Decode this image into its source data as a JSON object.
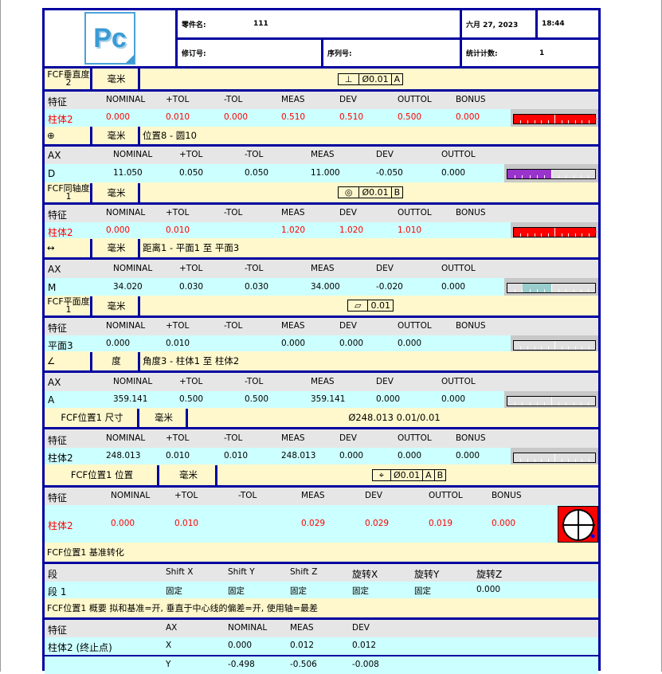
{
  "header": {
    "logo_text": "Pc",
    "part_name_label": "零件名:",
    "part_name": "111",
    "date": "六月 27, 2023",
    "time": "18:44",
    "revision_label": "修订号:",
    "revision": "",
    "serial_label": "序列号:",
    "serial": "",
    "count_label": "统计计数:",
    "count": "1"
  },
  "colors": {
    "border": "#0000a0",
    "header_bg": "#fff8cc",
    "colhead_bg": "#e6e6e6",
    "row_bg": "#ccffff",
    "out_of_tol": "#ff0000"
  },
  "sections": [
    {
      "kind": "fcf",
      "header": {
        "name": "FCF垂直度2",
        "unit": "毫米",
        "fcf": [
          "⊥",
          "Ø0.01",
          "A"
        ]
      },
      "columns": [
        "特征",
        "NOMINAL",
        "+TOL",
        "-TOL",
        "MEAS",
        "DEV",
        "OUTTOL",
        "BONUS"
      ],
      "rows": [
        {
          "out": true,
          "cells": [
            "柱体2",
            "0.000",
            "0.010",
            "0.000",
            "0.510",
            "0.510",
            "0.500",
            "0.000"
          ]
        }
      ],
      "gauge": {
        "fill_from": 0,
        "fill_to": 1,
        "color": "#ff0000",
        "arrow": true
      }
    },
    {
      "kind": "dim",
      "header": {
        "icon": "⊕",
        "unit": "毫米",
        "title": "位置8 - 圆10"
      },
      "columns": [
        "AX",
        "NOMINAL",
        "+TOL",
        "-TOL",
        "MEAS",
        "DEV",
        "OUTTOL"
      ],
      "rows": [
        {
          "out": false,
          "cells": [
            "D",
            "11.050",
            "0.050",
            "0.050",
            "11.000",
            "-0.050",
            "0.000"
          ]
        }
      ],
      "gauge": {
        "fill_from": 0,
        "fill_to": 0.5,
        "color": "#9933cc"
      }
    },
    {
      "kind": "fcf",
      "header": {
        "name": "FCF同轴度1",
        "unit": "毫米",
        "fcf": [
          "◎",
          "Ø0.01",
          "B"
        ]
      },
      "columns": [
        "特征",
        "NOMINAL",
        "+TOL",
        "-TOL",
        "MEAS",
        "DEV",
        "OUTTOL",
        "BONUS"
      ],
      "rows": [
        {
          "out": true,
          "cells": [
            "柱体2",
            "0.000",
            "0.010",
            "",
            "1.020",
            "1.020",
            "1.010",
            ""
          ]
        }
      ],
      "gauge": {
        "fill_from": 0,
        "fill_to": 1,
        "color": "#ff0000",
        "arrow": true
      }
    },
    {
      "kind": "dim",
      "header": {
        "icon": "↔",
        "unit": "毫米",
        "title": "距离1 - 平面1 至 平面3"
      },
      "columns": [
        "AX",
        "NOMINAL",
        "+TOL",
        "-TOL",
        "MEAS",
        "DEV",
        "OUTTOL"
      ],
      "rows": [
        {
          "out": false,
          "cells": [
            "M",
            "34.020",
            "0.030",
            "0.030",
            "34.000",
            "-0.020",
            "0.000"
          ]
        }
      ],
      "gauge": {
        "fill_from": 0.17,
        "fill_to": 0.5,
        "color": "#99cccc"
      }
    },
    {
      "kind": "fcf",
      "header": {
        "name": "FCF平面度1",
        "unit": "毫米",
        "fcf": [
          "▱",
          "0.01"
        ]
      },
      "columns": [
        "特征",
        "NOMINAL",
        "+TOL",
        "-TOL",
        "MEAS",
        "DEV",
        "OUTTOL",
        "BONUS"
      ],
      "rows": [
        {
          "out": false,
          "cells": [
            "平面3",
            "0.000",
            "0.010",
            "",
            "0.000",
            "0.000",
            "0.000",
            ""
          ]
        }
      ],
      "gauge": {
        "fill_from": 0,
        "fill_to": 0,
        "color": "#e0e0e0"
      }
    },
    {
      "kind": "dim",
      "header": {
        "icon": "∠",
        "unit": "度",
        "title": "角度3 - 柱体1 至 柱体2"
      },
      "columns": [
        "AX",
        "NOMINAL",
        "+TOL",
        "-TOL",
        "MEAS",
        "DEV",
        "OUTTOL"
      ],
      "rows": [
        {
          "out": false,
          "cells": [
            "A",
            "359.141",
            "0.500",
            "0.500",
            "359.141",
            "0.000",
            "0.000"
          ]
        }
      ],
      "gauge": {
        "fill_from": 0.5,
        "fill_to": 0.5,
        "color": "#e0e0e0"
      }
    },
    {
      "kind": "size",
      "header": {
        "name": "FCF位置1 尺寸",
        "unit": "毫米",
        "title": "Ø248.013  0.01/0.01"
      },
      "columns": [
        "特征",
        "NOMINAL",
        "+TOL",
        "-TOL",
        "MEAS",
        "DEV",
        "OUTTOL",
        "BONUS"
      ],
      "rows": [
        {
          "out": false,
          "cells": [
            "柱体2",
            "248.013",
            "0.010",
            "0.010",
            "248.013",
            "0.000",
            "0.000",
            "0.000"
          ]
        }
      ],
      "gauge": {
        "fill_from": 0.5,
        "fill_to": 0.5,
        "color": "#e0e0e0"
      }
    },
    {
      "kind": "pos",
      "header": {
        "name": "FCF位置1 位置",
        "unit": "毫米",
        "fcf": [
          "⌖",
          "Ø0.01",
          "A",
          "B"
        ]
      },
      "columns": [
        "特征",
        "NOMINAL",
        "+TOL",
        "-TOL",
        "MEAS",
        "DEV",
        "OUTTOL",
        "BONUS"
      ],
      "rows": [
        {
          "out": true,
          "cells": [
            "柱体2",
            "0.000",
            "0.010",
            "",
            "0.029",
            "0.029",
            "0.019",
            "0.000"
          ]
        }
      ],
      "target_plot": {
        "bg": "#ff0000",
        "point_color": "#0000ff"
      }
    },
    {
      "kind": "shift",
      "header": {
        "title": "FCF位置1 基准转化"
      },
      "columns": [
        "段",
        "Shift X",
        "Shift Y",
        "Shift Z",
        "旋转X",
        "旋转Y",
        "旋转Z"
      ],
      "rows": [
        {
          "out": false,
          "cells": [
            "段 1",
            "固定",
            "固定",
            "固定",
            "固定",
            "固定",
            "0.000"
          ]
        }
      ]
    },
    {
      "kind": "summary",
      "header": {
        "title": "FCF位置1 概要  拟和基准=开, 垂直于中心线的偏差=开, 使用轴=最差"
      },
      "columns": [
        "特征",
        "AX",
        "NOMINAL",
        "MEAS",
        "DEV"
      ],
      "rows": [
        {
          "out": false,
          "cells": [
            "柱体2 (终止点)",
            "X",
            "0.000",
            "0.012",
            "0.012"
          ]
        },
        {
          "out": false,
          "cells": [
            "",
            "Y",
            "-0.498",
            "-0.506",
            "-0.008"
          ]
        }
      ]
    }
  ]
}
